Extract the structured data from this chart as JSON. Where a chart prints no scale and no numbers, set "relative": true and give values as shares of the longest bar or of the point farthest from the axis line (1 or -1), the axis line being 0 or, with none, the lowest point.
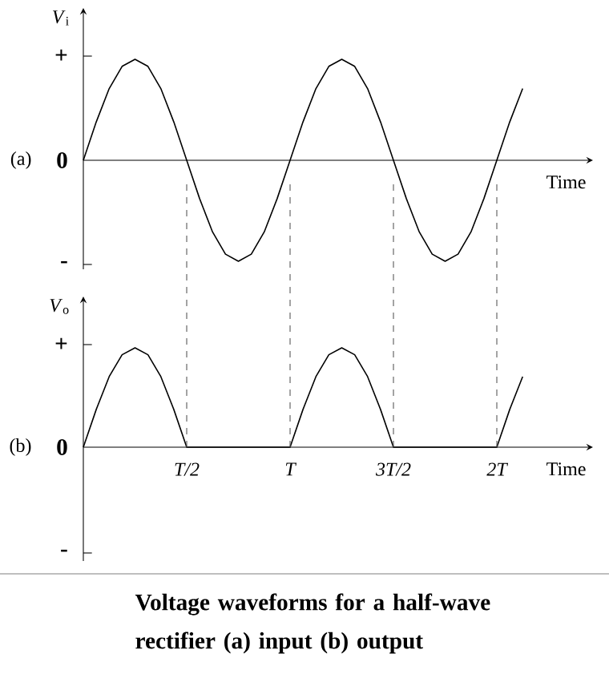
{
  "chart_data": [
    {
      "type": "line",
      "relative": true,
      "ylabel": "*V*$_{i}$",
      "xlabel": "Time",
      "annotations": [
        "(a)",
        "+",
        "0",
        "-"
      ],
      "color": "#000000",
      "categories": [
        null,
        null,
        null,
        null,
        null,
        null,
        null,
        null,
        null,
        null,
        null,
        null,
        null,
        null,
        null,
        null,
        null,
        null,
        null,
        null,
        null,
        null,
        null,
        null,
        null,
        null,
        null,
        null,
        null,
        null,
        null,
        null,
        null,
        null,
        null
      ],
      "values": [
        0,
        0.38,
        0.71,
        0.93,
        1,
        0.93,
        0.71,
        0.38,
        0,
        -0.38,
        -0.71,
        -0.93,
        -1,
        -0.93,
        -0.71,
        -0.38,
        0,
        0.38,
        0.71,
        0.93,
        1,
        0.93,
        0.71,
        0.38,
        0,
        -0.38,
        -0.71,
        -0.93,
        -1,
        -0.93,
        -0.71,
        -0.38,
        0,
        0.38,
        0.71
      ]
    },
    {
      "type": "line",
      "relative": true,
      "ylabel": "*V*$_{o}$",
      "xlabel": "Time",
      "annotations": [
        "(b)",
        "+",
        "0",
        "-",
        "Voltage waveforms for a half-wave rectifier (a)  input (b)  output"
      ],
      "color": "#000000",
      "categories": [
        null,
        null,
        null,
        null,
        null,
        null,
        null,
        null,
        "T/2",
        null,
        null,
        null,
        null,
        null,
        null,
        null,
        "T",
        null,
        null,
        null,
        null,
        null,
        null,
        null,
        "3T/2",
        null,
        null,
        null,
        null,
        null,
        null,
        null,
        "2T",
        null,
        null
      ],
      "values": [
        0,
        0.38,
        0.71,
        0.93,
        1,
        0.93,
        0.71,
        0.38,
        0,
        0,
        0,
        0,
        0,
        0,
        0,
        0,
        0,
        0.38,
        0.71,
        0.93,
        1,
        0.93,
        0.71,
        0.38,
        0,
        0,
        0,
        0,
        0,
        0,
        0,
        0,
        0,
        0.38,
        0.71
      ],
      "ref_lines": [
        {
          "axis": "x",
          "value": "T/2",
          "line_style": "dashed",
          "color": "#555555"
        },
        {
          "axis": "x",
          "value": "T",
          "line_style": "dashed",
          "color": "#555555"
        },
        {
          "axis": "x",
          "value": "3T/2",
          "line_style": "dashed",
          "color": "#555555"
        },
        {
          "axis": "x",
          "value": "2T",
          "line_style": "dashed",
          "color": "#555555"
        }
      ]
    }
  ]
}
